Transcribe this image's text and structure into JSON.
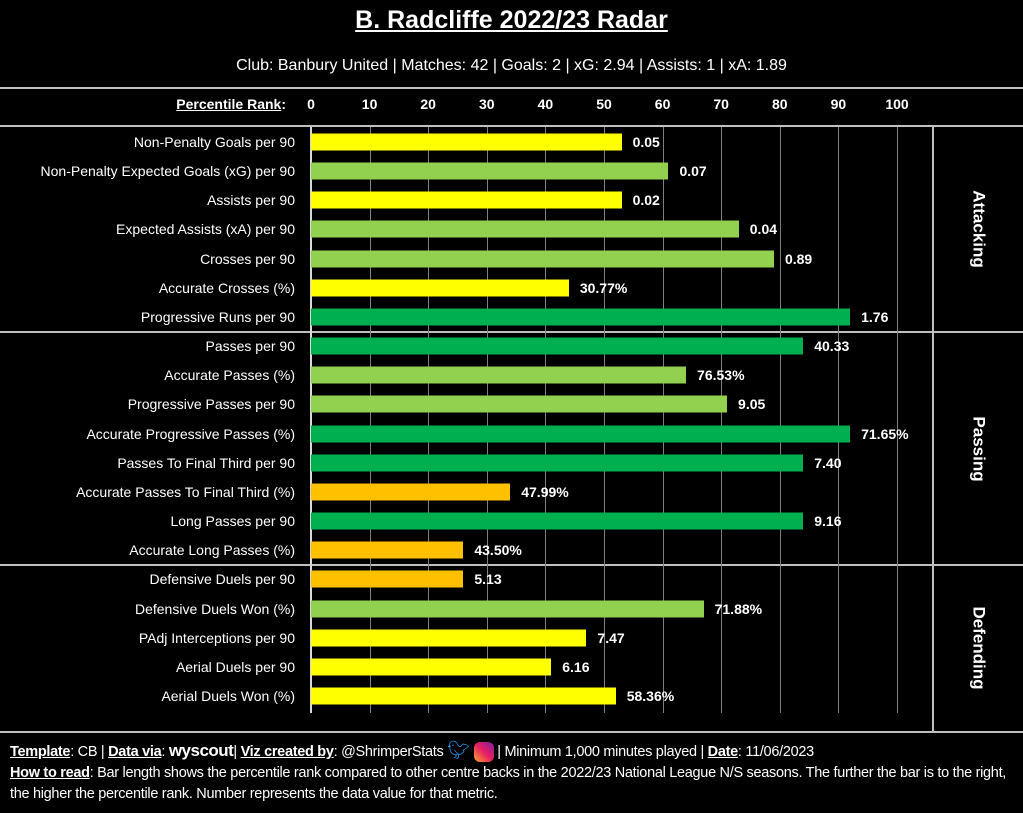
{
  "header": {
    "title": "B. Radcliffe 2022/23 Radar",
    "subtitle": "Club: Banbury United | Matches: 42 | Goals: 2 | xG: 2.94 | Assists: 1 | xA: 1.89",
    "axis_label": "Percentile Rank"
  },
  "footer": {
    "template_label": "Template",
    "template": "CB",
    "data_label": "Data via",
    "data_source": "wyscout",
    "viz_label": "Viz created by",
    "author": "@ShrimperStats",
    "minimum": "Minimum 1,000 minutes played",
    "date_label": "Date",
    "date": "11/06/2023",
    "howto_label": "How to read",
    "howto": "Bar length shows the percentile rank compared to other centre backs in the 2022/23 National League N/S seasons. The further the bar is to the right, the higher the percentile rank. Number represents the data value for that metric."
  },
  "colors": {
    "yellow": "#ffff00",
    "lightgreen": "#92d050",
    "darkgreen": "#00b050",
    "orange": "#ffc000"
  },
  "chart_data": {
    "type": "bar",
    "orientation": "horizontal",
    "title": "B. Radcliffe 2022/23 Radar",
    "xlabel": "Percentile Rank",
    "xlim": [
      0,
      100
    ],
    "ticks": [
      "0",
      "10",
      "20",
      "30",
      "40",
      "50",
      "60",
      "70",
      "80",
      "90",
      "100"
    ],
    "sections": [
      {
        "name": "Attacking",
        "start": 0,
        "end": 6
      },
      {
        "name": "Passing",
        "start": 7,
        "end": 14
      },
      {
        "name": "Defending",
        "start": 15,
        "end": 19
      }
    ],
    "rows": [
      {
        "label": "Non-Penalty Goals per 90",
        "percentile": 53,
        "value": "0.05",
        "color": "#ffff00"
      },
      {
        "label": "Non-Penalty Expected Goals (xG) per 90",
        "percentile": 61,
        "value": "0.07",
        "color": "#92d050"
      },
      {
        "label": "Assists per 90",
        "percentile": 53,
        "value": "0.02",
        "color": "#ffff00"
      },
      {
        "label": "Expected Assists (xA) per 90",
        "percentile": 73,
        "value": "0.04",
        "color": "#92d050"
      },
      {
        "label": "Crosses per 90",
        "percentile": 79,
        "value": "0.89",
        "color": "#92d050"
      },
      {
        "label": "Accurate Crosses (%)",
        "percentile": 44,
        "value": "30.77%",
        "color": "#ffff00"
      },
      {
        "label": "Progressive Runs per 90",
        "percentile": 92,
        "value": "1.76",
        "color": "#00b050"
      },
      {
        "label": "Passes per 90",
        "percentile": 84,
        "value": "40.33",
        "color": "#00b050"
      },
      {
        "label": "Accurate Passes (%)",
        "percentile": 64,
        "value": "76.53%",
        "color": "#92d050"
      },
      {
        "label": "Progressive Passes per 90",
        "percentile": 71,
        "value": "9.05",
        "color": "#92d050"
      },
      {
        "label": "Accurate Progressive Passes (%)",
        "percentile": 92,
        "value": "71.65%",
        "color": "#00b050"
      },
      {
        "label": "Passes To Final Third per 90",
        "percentile": 84,
        "value": "7.40",
        "color": "#00b050"
      },
      {
        "label": "Accurate Passes To Final Third (%)",
        "percentile": 34,
        "value": "47.99%",
        "color": "#ffc000"
      },
      {
        "label": "Long Passes per 90",
        "percentile": 84,
        "value": "9.16",
        "color": "#00b050"
      },
      {
        "label": "Accurate Long Passes (%)",
        "percentile": 26,
        "value": "43.50%",
        "color": "#ffc000"
      },
      {
        "label": "Defensive Duels per 90",
        "percentile": 26,
        "value": "5.13",
        "color": "#ffc000"
      },
      {
        "label": "Defensive Duels Won (%)",
        "percentile": 67,
        "value": "71.88%",
        "color": "#92d050"
      },
      {
        "label": "PAdj Interceptions per 90",
        "percentile": 47,
        "value": "7.47",
        "color": "#ffff00"
      },
      {
        "label": "Aerial Duels per 90",
        "percentile": 41,
        "value": "6.16",
        "color": "#ffff00"
      },
      {
        "label": "Aerial Duels Won (%)",
        "percentile": 52,
        "value": "58.36%",
        "color": "#ffff00"
      }
    ]
  }
}
